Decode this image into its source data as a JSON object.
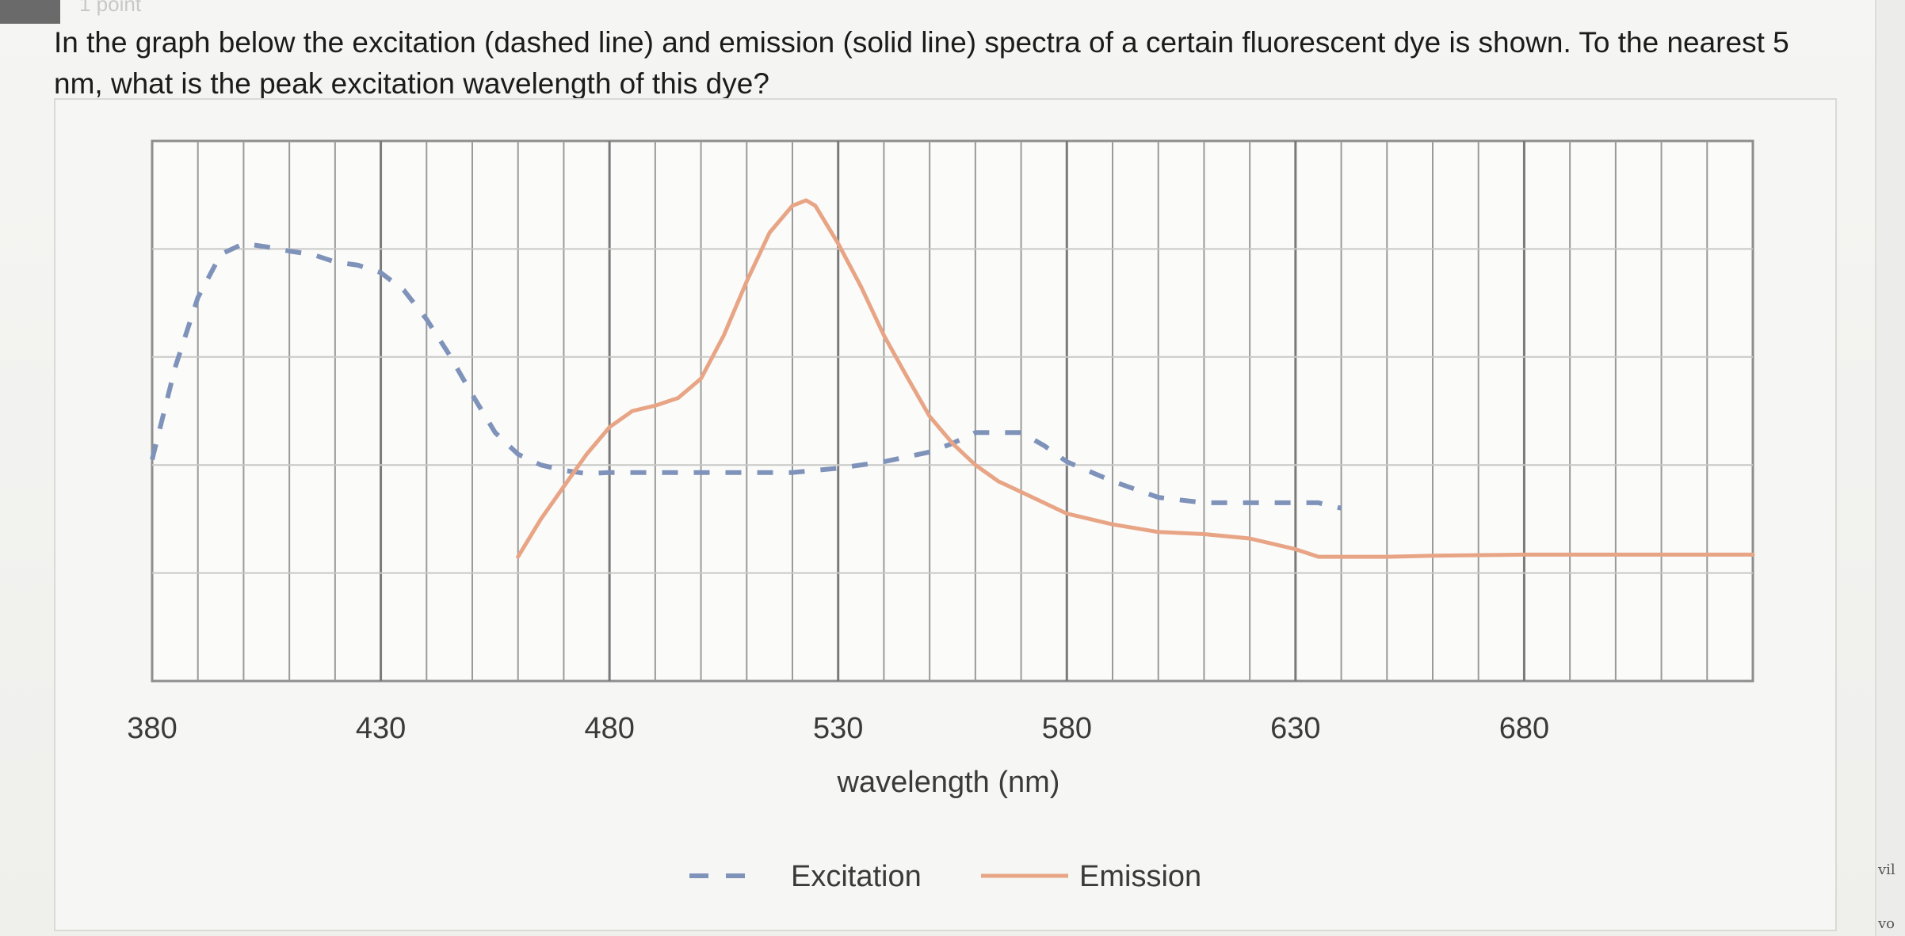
{
  "question": {
    "text": "In the graph below the excitation (dashed line) and emission (solid line) spectra of a certain fluorescent dye is shown. To the nearest 5 nm, what is the peak excitation wavelength of this dye?"
  },
  "header": {
    "points_ghost": "1 point"
  },
  "edge": {
    "text_1": "vil",
    "text_2": "vo"
  },
  "chart_data": {
    "type": "line",
    "xlabel": "wavelength (nm)",
    "ylabel": "",
    "xlim": [
      380,
      730
    ],
    "ylim": [
      0,
      5
    ],
    "xticks": [
      380,
      430,
      480,
      530,
      580,
      630,
      680
    ],
    "grid": true,
    "legend_position": "bottom-center",
    "series": [
      {
        "name": "Excitation",
        "style": "dashed",
        "color": "#7f93ba",
        "x": [
          380,
          385,
          390,
          395,
          400,
          405,
          410,
          415,
          420,
          425,
          430,
          435,
          440,
          445,
          450,
          455,
          460,
          465,
          470,
          475,
          480,
          490,
          500,
          510,
          520,
          530,
          540,
          550,
          555,
          560,
          570,
          575,
          580,
          590,
          600,
          610,
          620,
          630,
          635,
          640
        ],
        "y": [
          2.05,
          2.9,
          3.55,
          3.95,
          4.05,
          4.02,
          3.98,
          3.95,
          3.88,
          3.85,
          3.78,
          3.62,
          3.35,
          3.02,
          2.65,
          2.3,
          2.1,
          2.0,
          1.95,
          1.92,
          1.93,
          1.93,
          1.93,
          1.93,
          1.93,
          1.97,
          2.03,
          2.12,
          2.2,
          2.3,
          2.3,
          2.18,
          2.03,
          1.85,
          1.7,
          1.65,
          1.65,
          1.65,
          1.65,
          1.6
        ]
      },
      {
        "name": "Emission",
        "style": "solid",
        "color": "#e8a585",
        "x": [
          460,
          465,
          470,
          475,
          480,
          485,
          490,
          495,
          500,
          505,
          510,
          515,
          520,
          523,
          525,
          530,
          535,
          540,
          545,
          550,
          555,
          560,
          565,
          570,
          575,
          580,
          590,
          600,
          610,
          620,
          630,
          635,
          640,
          650,
          660,
          680,
          700,
          730
        ],
        "y": [
          1.15,
          1.5,
          1.8,
          2.1,
          2.35,
          2.5,
          2.55,
          2.62,
          2.8,
          3.2,
          3.7,
          4.15,
          4.4,
          4.45,
          4.4,
          4.05,
          3.65,
          3.2,
          2.82,
          2.45,
          2.2,
          2.0,
          1.85,
          1.75,
          1.65,
          1.55,
          1.45,
          1.38,
          1.36,
          1.32,
          1.22,
          1.15,
          1.15,
          1.15,
          1.16,
          1.17,
          1.17,
          1.17
        ]
      }
    ]
  }
}
